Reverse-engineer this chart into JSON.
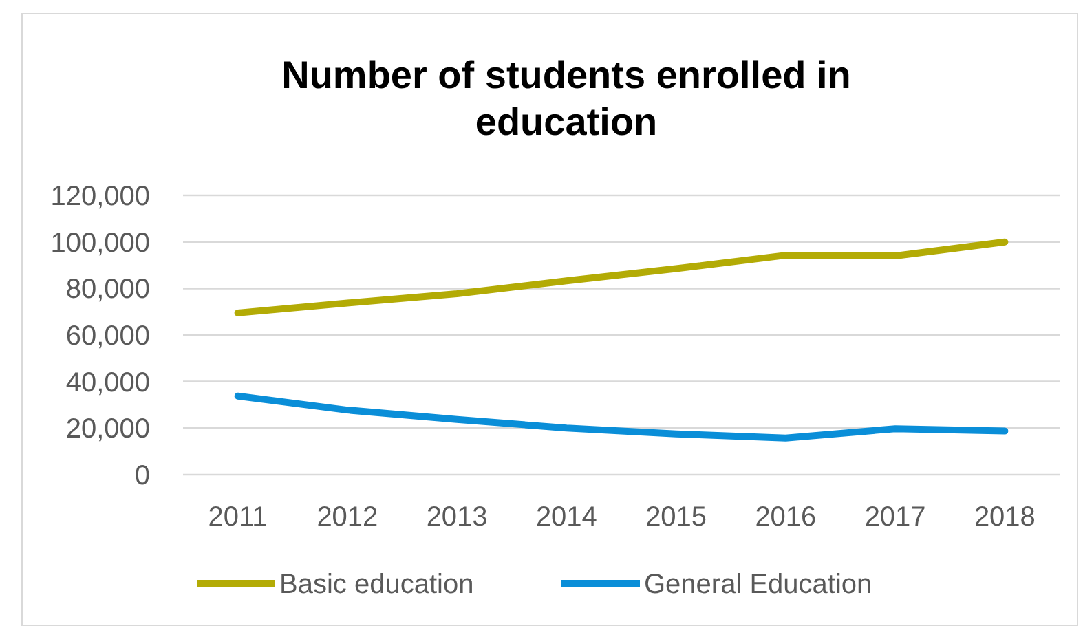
{
  "chart_data": {
    "type": "line",
    "title": "Number of students enrolled in education",
    "categories": [
      "2011",
      "2012",
      "2013",
      "2014",
      "2015",
      "2016",
      "2017",
      "2018"
    ],
    "series": [
      {
        "name": "Basic education",
        "color": "#b3ab05",
        "values": [
          69500,
          73750,
          77750,
          83250,
          88500,
          94250,
          94000,
          100000
        ]
      },
      {
        "name": "General Education",
        "color": "#0a8ed8",
        "values": [
          33750,
          27750,
          23750,
          20000,
          17500,
          15750,
          19750,
          18750
        ]
      }
    ],
    "ylim": [
      0,
      120000
    ],
    "yticks": [
      {
        "value": 0,
        "label": "0"
      },
      {
        "value": 20000,
        "label": "20,000"
      },
      {
        "value": 40000,
        "label": "40,000"
      },
      {
        "value": 60000,
        "label": "60,000"
      },
      {
        "value": 80000,
        "label": "80,000"
      },
      {
        "value": 100000,
        "label": "100,000"
      },
      {
        "value": 120000,
        "label": "120,000"
      }
    ],
    "grid": "y",
    "legend": "bottom",
    "marker": "none",
    "line_style": "solid"
  }
}
